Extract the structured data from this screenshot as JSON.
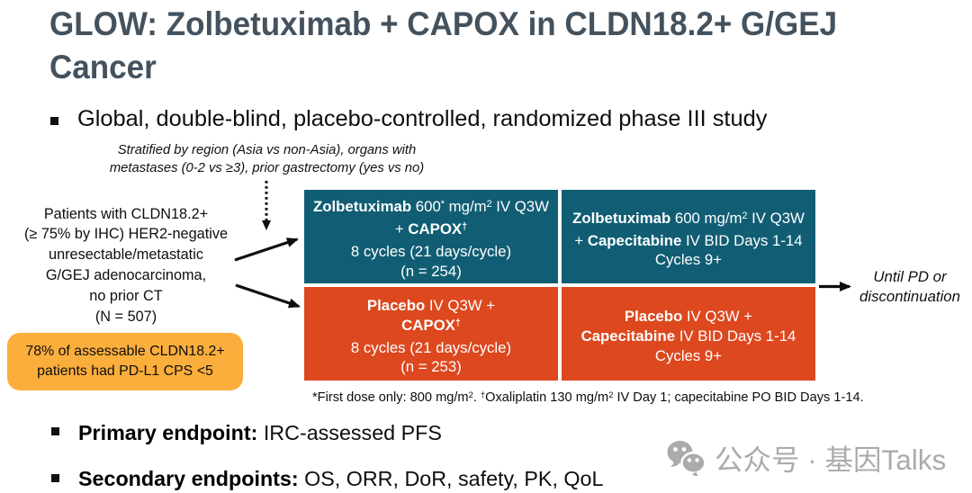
{
  "slide": {
    "title": "GLOW: Zolbetuximab + CAPOX in CLDN18.2+ G/GEJ\nCancer",
    "bullet_study": "Global, double-blind, placebo-controlled, randomized phase III study",
    "bullet_primary_label": "Primary endpoint:",
    "bullet_primary_text": " IRC-assessed PFS",
    "bullet_secondary_label": "Secondary endpoints:",
    "bullet_secondary_text": " OS, ORR, DoR, safety, PK, QoL"
  },
  "diagram": {
    "stratification_note": "Stratified by region (Asia vs non-Asia), organs with\nmetastases (0-2 vs ≥3), prior gastrectomy (yes vs no)",
    "population": "Patients with CLDN18.2+\n(≥ 75% by IHC) HER2-negative\nunresectable/metastatic\nG/GEJ adenocarcinoma,\nno prior CT\n(N = 507)",
    "callout": "78% of assessable CLDN18.2+\npatients had PD-L1 CPS <5",
    "until_note": "Until PD or\ndiscontinuation",
    "arms": [
      {
        "name": "zolbetuximab-capox",
        "lines": [
          [
            {
              "t": "Zolbetuximab",
              "b": true
            },
            {
              "t": " 600"
            },
            {
              "t": "*",
              "sup": true
            },
            {
              "t": " mg/m"
            },
            {
              "t": "2",
              "sup": true
            },
            {
              "t": " IV Q3W"
            }
          ],
          [
            {
              "t": "+ "
            },
            {
              "t": "CAPOX",
              "b": true
            },
            {
              "t": "†",
              "b": true,
              "sup": true
            }
          ],
          [
            {
              "t": "8 cycles (21 days/cycle)"
            }
          ],
          [
            {
              "t": "(n = 254)"
            }
          ]
        ]
      },
      {
        "name": "zolbetuximab-capecitabine",
        "lines": [
          [
            {
              "t": "Zolbetuximab",
              "b": true
            },
            {
              "t": " 600 mg/m"
            },
            {
              "t": "2",
              "sup": true
            },
            {
              "t": " IV Q3W"
            }
          ],
          [
            {
              "t": "+ "
            },
            {
              "t": "Capecitabine",
              "b": true
            },
            {
              "t": " IV BID Days 1-14"
            }
          ],
          [
            {
              "t": "Cycles 9+"
            }
          ]
        ]
      },
      {
        "name": "placebo-capox",
        "lines": [
          [
            {
              "t": "Placebo",
              "b": true
            },
            {
              "t": " IV Q3W +"
            }
          ],
          [
            {
              "t": "CAPOX",
              "b": true
            },
            {
              "t": "†",
              "b": true,
              "sup": true
            }
          ],
          [
            {
              "t": "8 cycles (21 days/cycle)"
            }
          ],
          [
            {
              "t": "(n = 253)"
            }
          ]
        ]
      },
      {
        "name": "placebo-capecitabine",
        "lines": [
          [
            {
              "t": "Placebo",
              "b": true
            },
            {
              "t": " IV Q3W +"
            }
          ],
          [
            {
              "t": "Capecitabine",
              "b": true
            },
            {
              "t": " IV BID Days 1-14"
            }
          ],
          [
            {
              "t": "Cycles 9+"
            }
          ]
        ]
      }
    ],
    "footnote": [
      [
        {
          "t": "*First dose only: 800 mg/m"
        },
        {
          "t": "2",
          "sup": true
        },
        {
          "t": ". "
        },
        {
          "t": "†",
          "sup": true
        },
        {
          "t": "Oxaliplatin 130 mg/m"
        },
        {
          "t": "2",
          "sup": true
        },
        {
          "t": " IV Day 1; capecitabine PO BID Days 1-14."
        }
      ]
    ],
    "colors": {
      "teal": "#115e74",
      "red": "#dd481f",
      "amber": "#fbae3c",
      "title": "#44525e"
    }
  },
  "watermark": {
    "icon": "wechat-icon",
    "text": "公众号 · 基因Talks"
  }
}
